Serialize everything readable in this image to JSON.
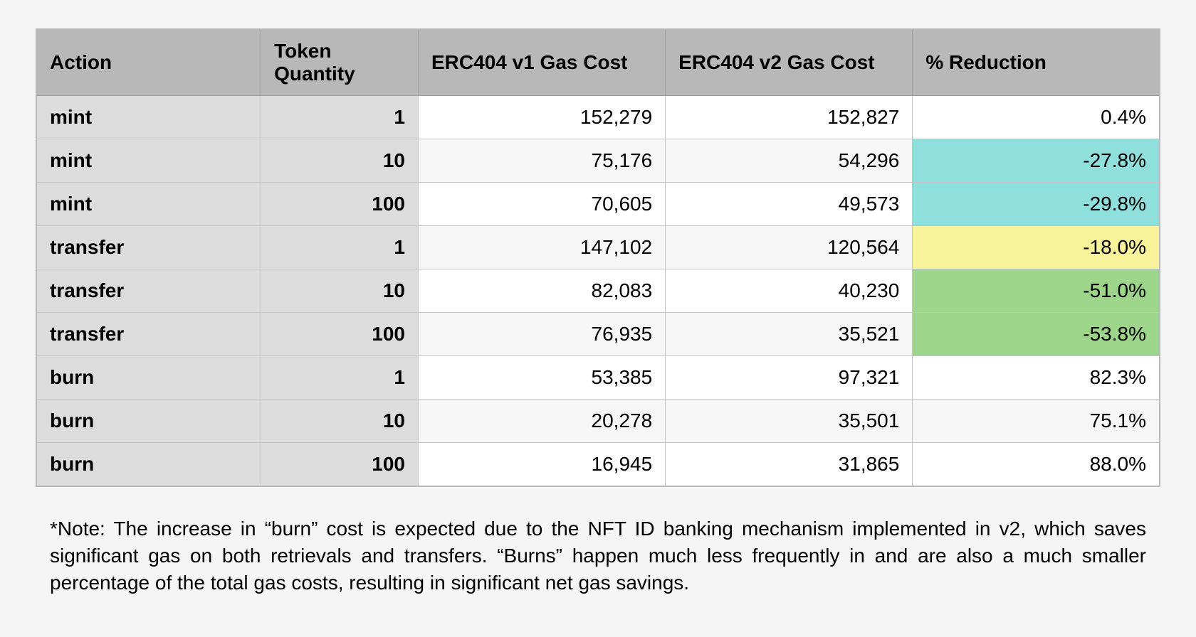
{
  "table": {
    "columns": [
      "Action",
      "Token Quantity",
      "ERC404 v1 Gas Cost",
      "ERC404 v2 Gas Cost",
      "% Reduction"
    ],
    "rows": [
      {
        "action": "mint",
        "qty": "1",
        "v1": "152,279",
        "v2": "152,827",
        "reduction": "0.4%",
        "hl": "none"
      },
      {
        "action": "mint",
        "qty": "10",
        "v1": "75,176",
        "v2": "54,296",
        "reduction": "-27.8%",
        "hl": "cyan"
      },
      {
        "action": "mint",
        "qty": "100",
        "v1": "70,605",
        "v2": "49,573",
        "reduction": "-29.8%",
        "hl": "cyan"
      },
      {
        "action": "transfer",
        "qty": "1",
        "v1": "147,102",
        "v2": "120,564",
        "reduction": "-18.0%",
        "hl": "yellow"
      },
      {
        "action": "transfer",
        "qty": "10",
        "v1": "82,083",
        "v2": "40,230",
        "reduction": "-51.0%",
        "hl": "green"
      },
      {
        "action": "transfer",
        "qty": "100",
        "v1": "76,935",
        "v2": "35,521",
        "reduction": "-53.8%",
        "hl": "green"
      },
      {
        "action": "burn",
        "qty": "1",
        "v1": "53,385",
        "v2": "97,321",
        "reduction": "82.3%",
        "hl": "none"
      },
      {
        "action": "burn",
        "qty": "10",
        "v1": "20,278",
        "v2": "35,501",
        "reduction": "75.1%",
        "hl": "none"
      },
      {
        "action": "burn",
        "qty": "100",
        "v1": "16,945",
        "v2": "31,865",
        "reduction": "88.0%",
        "hl": "none"
      }
    ],
    "highlight_colors": {
      "none_even": "#ffffff",
      "none_odd": "#f6f6f6",
      "cyan": "#8fe0dc",
      "yellow": "#f8f39b",
      "green": "#9dd68a"
    },
    "header_bg": "#b8b8b8",
    "action_col_bg": "#dcdcdc",
    "border_color": "#c5c5c5"
  },
  "note": "*Note: The increase in “burn” cost is expected due to the NFT ID banking mechanism implemented in v2, which saves significant gas on both retrievals and transfers. “Burns” happen much less frequently in and are also a much smaller percentage of the total gas costs, resulting in significant net gas savings."
}
